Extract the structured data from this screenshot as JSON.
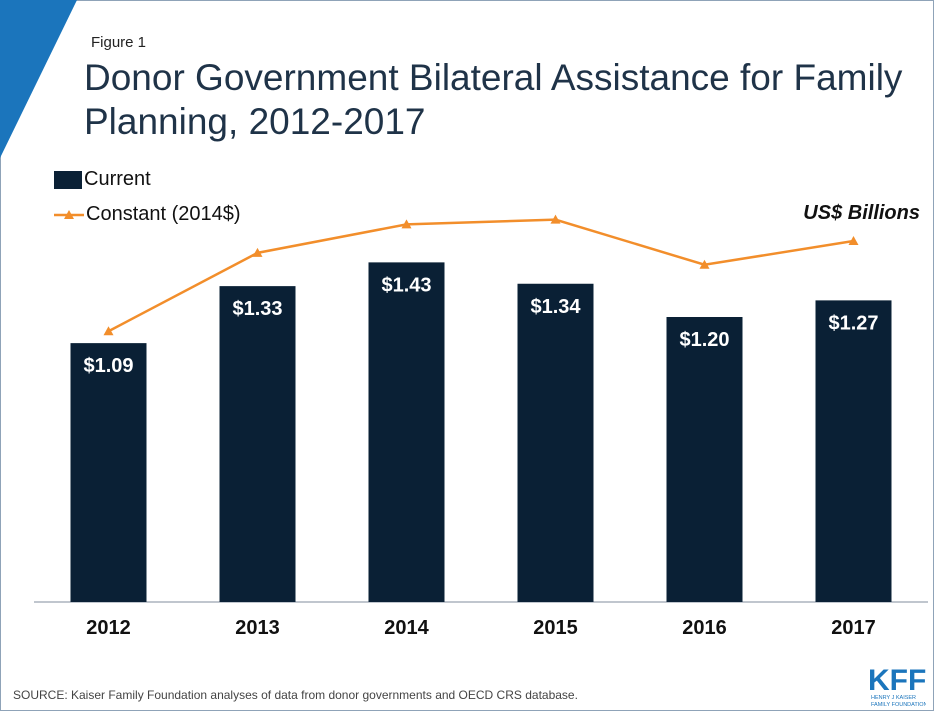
{
  "figure_label": "Figure 1",
  "title": "Donor Government Bilateral Assistance for Family Planning, 2012-2017",
  "units_label": "US$ Billions",
  "source": "SOURCE: Kaiser Family Foundation analyses of data from donor governments and OECD CRS database.",
  "logo": {
    "text": "KFF",
    "subtext_1": "HENRY J KAISER",
    "subtext_2": "FAMILY FOUNDATION"
  },
  "colors": {
    "bar": "#0a2035",
    "line": "#f28e2b",
    "title": "#1f3348",
    "accent": "#1b75bc"
  },
  "chart_data": {
    "type": "bar",
    "categories": [
      "2012",
      "2013",
      "2014",
      "2015",
      "2016",
      "2017"
    ],
    "series": [
      {
        "name": "Current",
        "type": "bar",
        "values": [
          1.09,
          1.33,
          1.43,
          1.34,
          1.2,
          1.27
        ],
        "labels": [
          "$1.09",
          "$1.33",
          "$1.43",
          "$1.34",
          "$1.20",
          "$1.27"
        ]
      },
      {
        "name": "Constant (2014$)",
        "type": "line",
        "values": [
          1.14,
          1.47,
          1.59,
          1.61,
          1.42,
          1.52
        ]
      }
    ],
    "ylim": [
      0,
      1.6
    ],
    "legend_position": "top-left",
    "grid": false
  }
}
